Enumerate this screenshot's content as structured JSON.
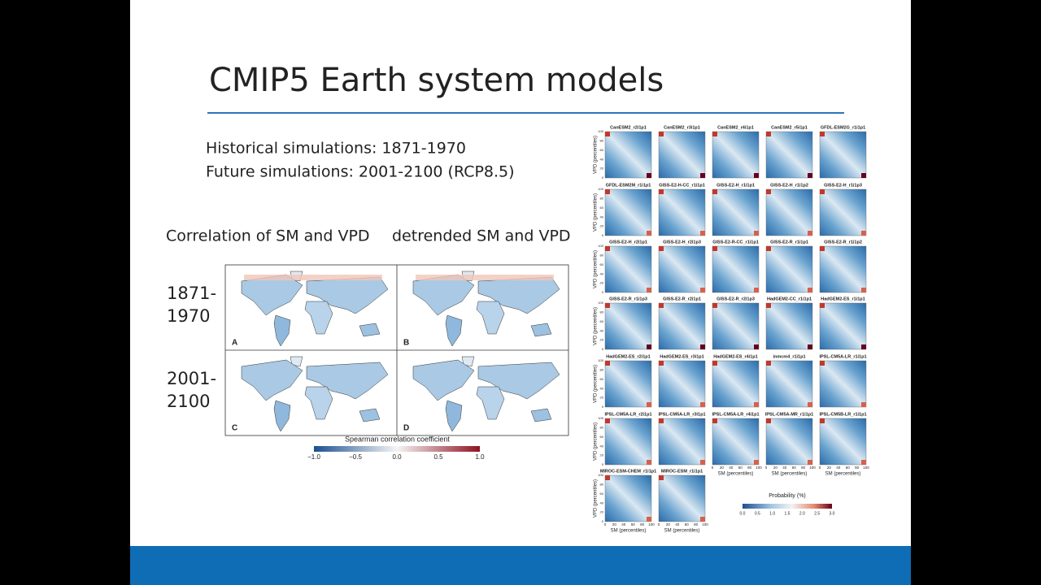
{
  "title": "CMIP5 Earth system models",
  "bullets": [
    "Historical simulations: 1871-1970",
    "Future simulations: 2001-2100 (RCP8.5)"
  ],
  "left_figure": {
    "column_headers": [
      "Correlation of SM and VPD",
      "detrended SM and VPD"
    ],
    "row_labels": [
      [
        "1871-",
        "1970"
      ],
      [
        "2001-",
        "2100"
      ]
    ],
    "panel_letters": [
      "A",
      "B",
      "C",
      "D"
    ],
    "colorbar_label": "Spearman correlation coefficient",
    "colorbar_ticks": [
      "−1.0",
      "−0.5",
      "0.0",
      "0.5",
      "1.0"
    ]
  },
  "right_figure": {
    "panels": [
      "CanESM2_r2i1p1",
      "CanESM2_r3i1p1",
      "CanESM2_r4i1p1",
      "CanESM2_r5i1p1",
      "GFDL-ESM2G_r1i1p1",
      "GFDL-ESM2M_r1i1p1",
      "GISS-E2-H-CC_r1i1p1",
      "GISS-E2-H_r1i1p1",
      "GISS-E2-H_r1i1p2",
      "GISS-E2-H_r1i1p3",
      "GISS-E2-H_r2i1p1",
      "GISS-E2-H_r2i1p3",
      "GISS-E2-R-CC_r1i1p1",
      "GISS-E2-R_r1i1p1",
      "GISS-E2-R_r1i1p2",
      "GISS-E2-R_r1i1p3",
      "GISS-E2-R_r2i1p1",
      "GISS-E2-R_r2i1p3",
      "HadGEM2-CC_r1i1p1",
      "HadGEM2-ES_r1i1p1",
      "HadGEM2-ES_r2i1p1",
      "HadGEM2-ES_r3i1p1",
      "HadGEM2-ES_r4i1p1",
      "inmcm4_r1i1p1",
      "IPSL-CM5A-LR_r1i1p1",
      "IPSL-CM5A-LR_r2i1p1",
      "IPSL-CM5A-LR_r3i1p1",
      "IPSL-CM5A-LR_r4i1p1",
      "IPSL-CM5A-MR_r1i1p1",
      "IPSL-CM5B-LR_r1i1p1",
      "MIROC-ESM-CHEM_r1i1p1",
      "MIROC-ESM_r1i1p1"
    ],
    "y_label": "VPD (percentiles)",
    "x_label": "SM (percentiles)",
    "axis_ticks": [
      "0",
      "20",
      "40",
      "60",
      "80",
      "100"
    ],
    "colorbar_label": "Probability (%)",
    "colorbar_ticks": [
      "0.0",
      "0.5",
      "1.0",
      "1.5",
      "2.0",
      "2.5",
      "3.0"
    ]
  }
}
